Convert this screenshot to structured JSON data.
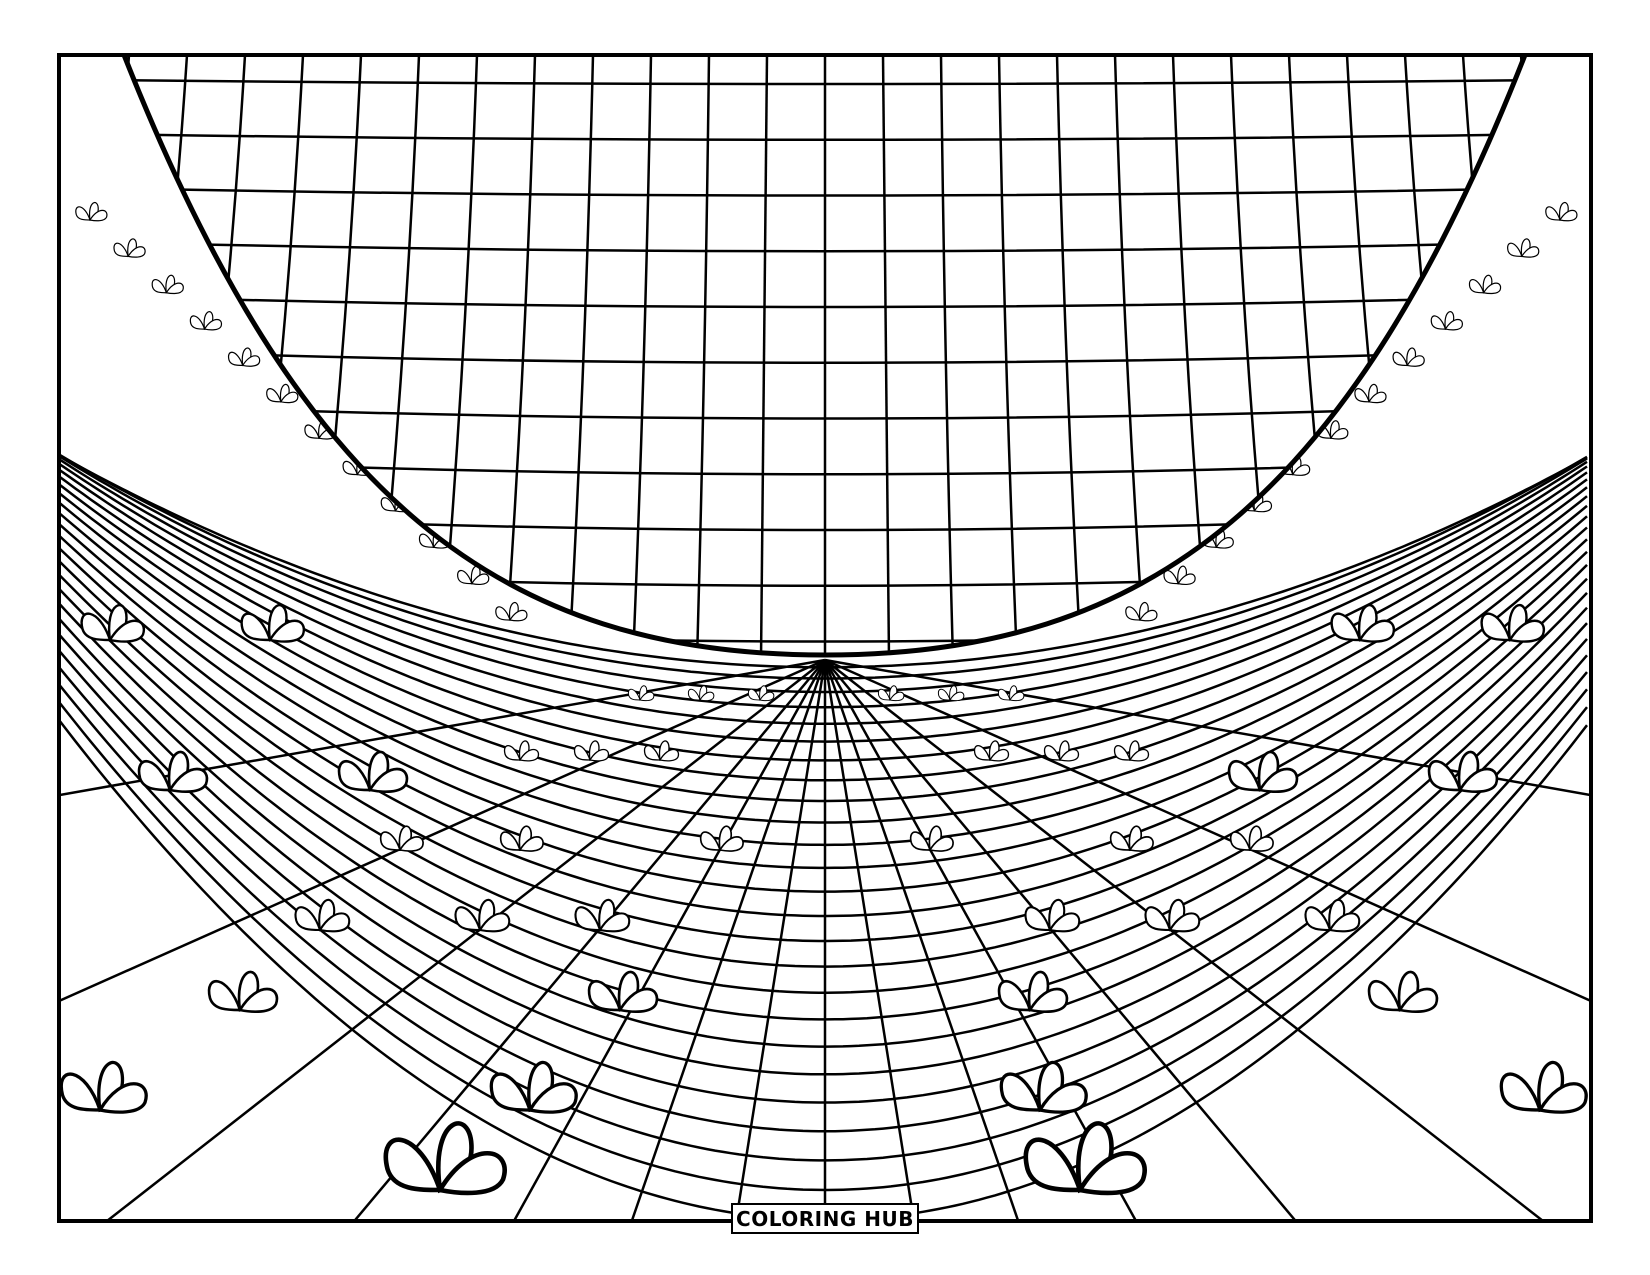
{
  "logo": {
    "text": "COLORING HUB"
  },
  "colors": {
    "line": "#000000",
    "background": "#ffffff"
  }
}
